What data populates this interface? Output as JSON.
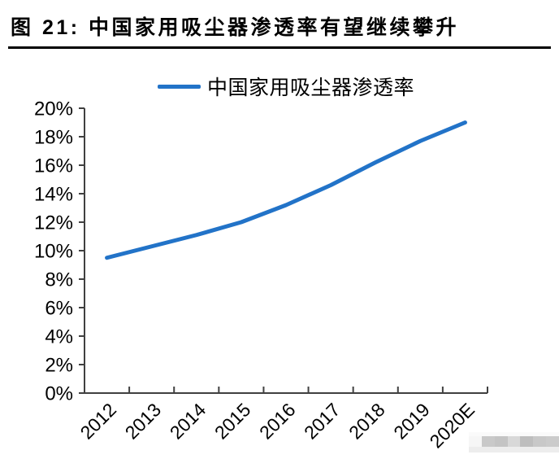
{
  "figure": {
    "title": "图 21:  中国家用吸尘器渗透率有望继续攀升"
  },
  "legend": {
    "label": "中国家用吸尘器渗透率"
  },
  "colors": {
    "line": "#2273C8",
    "axis": "#404040",
    "text": "#000000",
    "title_rule": "#000000"
  },
  "chart_data": {
    "type": "line",
    "title": "中国家用吸尘器渗透率",
    "categories": [
      "2012",
      "2013",
      "2014",
      "2015",
      "2016",
      "2017",
      "2018",
      "2019",
      "2020E"
    ],
    "values": [
      9.5,
      10.3,
      11.1,
      12.0,
      13.2,
      14.6,
      16.2,
      17.7,
      19.0
    ],
    "series": [
      {
        "name": "中国家用吸尘器渗透率",
        "values": [
          9.5,
          10.3,
          11.1,
          12.0,
          13.2,
          14.6,
          16.2,
          17.7,
          19.0
        ]
      }
    ],
    "xlabel": "",
    "ylabel": "",
    "ylim": [
      0,
      20
    ],
    "ytick_step": 2,
    "ytick_labels": [
      "0%",
      "2%",
      "4%",
      "6%",
      "8%",
      "10%",
      "12%",
      "14%",
      "16%",
      "18%",
      "20%"
    ],
    "grid": false,
    "legend_position": "top-center",
    "x_label_rotation": -45
  },
  "watermark": {
    "block_colors": [
      "#f6f6f6",
      "#c9c9c9",
      "#c4c4c4",
      "#d8d8d8",
      "#bebebe",
      "#c8c8c8",
      "#cbcbcb"
    ]
  }
}
